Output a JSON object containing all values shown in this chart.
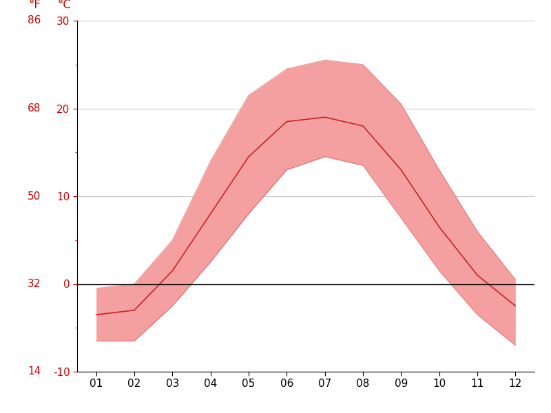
{
  "months": [
    1,
    2,
    3,
    4,
    5,
    6,
    7,
    8,
    9,
    10,
    11,
    12
  ],
  "month_labels": [
    "01",
    "02",
    "03",
    "04",
    "05",
    "06",
    "07",
    "08",
    "09",
    "10",
    "11",
    "12"
  ],
  "mean_temp": [
    -3.5,
    -3.0,
    1.5,
    8.0,
    14.5,
    18.5,
    19.0,
    18.0,
    13.0,
    6.5,
    1.0,
    -2.5
  ],
  "max_temp": [
    -0.5,
    0.0,
    5.0,
    14.0,
    21.5,
    24.5,
    25.5,
    25.0,
    20.5,
    13.0,
    6.0,
    0.5
  ],
  "min_temp": [
    -6.5,
    -6.5,
    -2.5,
    2.5,
    8.0,
    13.0,
    14.5,
    13.5,
    7.5,
    1.5,
    -3.5,
    -7.0
  ],
  "celsius_ticks": [
    -10,
    0,
    10,
    20,
    30
  ],
  "fahrenheit_ticks": [
    14,
    32,
    50,
    68,
    86
  ],
  "ylim": [
    -10,
    30
  ],
  "band_color": "#f5a0a0",
  "line_color": "#cc2222",
  "zero_line_color": "#000000",
  "grid_color": "#cccccc",
  "bg_color": "#ffffff",
  "tick_label_color": "#cc0000"
}
